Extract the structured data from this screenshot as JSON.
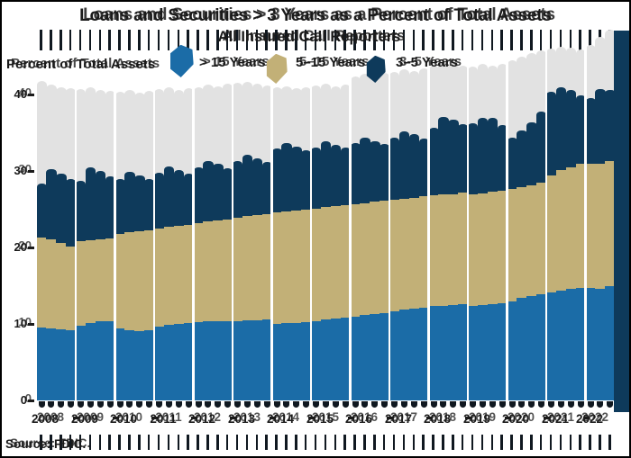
{
  "frame": {
    "background": "#ffffff",
    "border_color": "#000000"
  },
  "header": {
    "title": "Loans and Securities > 3 Years as a Percent of Total Assets",
    "subtitle": "All Insured Call Reporters"
  },
  "axes": {
    "y_title": "Percent of Total Assets",
    "y_ticks": [
      0,
      10,
      20,
      30,
      40
    ],
    "x_labels": [
      "2008",
      "2009",
      "2010",
      "2011",
      "2012",
      "2013",
      "2014",
      "2015",
      "2016",
      "2017",
      "2018",
      "2019",
      "2020",
      "2021",
      "2022"
    ]
  },
  "legend": {
    "items": [
      {
        "label": "> 15 Years",
        "color": "#1B6CA7",
        "swatch": "blob-swatch"
      },
      {
        "label": "5–15 Years",
        "color": "#C2B077",
        "swatch": "blob-swatch"
      },
      {
        "label": "3–5 Years",
        "color": "#0E3A5B",
        "swatch": "blob-swatch"
      }
    ]
  },
  "source_note": "Source: FDIC.",
  "colors": {
    "gt15_blue": "#1B6CA7",
    "mid_tan": "#C2B077",
    "short_navy": "#0E3A5B",
    "ghost_gray": "#E2E2E2",
    "text": "#1A1A1A",
    "artifact_dark": "#101820"
  },
  "chart_data": {
    "type": "bar",
    "stacked": true,
    "title": "Loans and Securities > 3 Years as a Percent of Total Assets",
    "subtitle": "All Insured Call Reporters",
    "ylabel": "Percent of Total Assets",
    "ylim": [
      0,
      45
    ],
    "grid": false,
    "legend_position": "top",
    "categories": [
      "2008Q1",
      "2008Q2",
      "2008Q3",
      "2008Q4",
      "2009Q1",
      "2009Q2",
      "2009Q3",
      "2009Q4",
      "2010Q1",
      "2010Q2",
      "2010Q3",
      "2010Q4",
      "2011Q1",
      "2011Q2",
      "2011Q3",
      "2011Q4",
      "2012Q1",
      "2012Q2",
      "2012Q3",
      "2012Q4",
      "2013Q1",
      "2013Q2",
      "2013Q3",
      "2013Q4",
      "2014Q1",
      "2014Q2",
      "2014Q3",
      "2014Q4",
      "2015Q1",
      "2015Q2",
      "2015Q3",
      "2015Q4",
      "2016Q1",
      "2016Q2",
      "2016Q3",
      "2016Q4",
      "2017Q1",
      "2017Q2",
      "2017Q3",
      "2017Q4",
      "2018Q1",
      "2018Q2",
      "2018Q3",
      "2018Q4",
      "2019Q1",
      "2019Q2",
      "2019Q3",
      "2019Q4",
      "2020Q1",
      "2020Q2",
      "2020Q3",
      "2020Q4",
      "2021Q1",
      "2021Q2",
      "2021Q3",
      "2021Q4",
      "2022Q1",
      "2022Q2",
      "2022Q3"
    ],
    "series": [
      {
        "name": "> 15 Years",
        "color": "#1B6CA7",
        "values": [
          9.5,
          9.4,
          9.3,
          9.2,
          9.8,
          10.1,
          10.3,
          10.4,
          9.4,
          9.2,
          9.1,
          9.2,
          9.7,
          9.9,
          10.0,
          10.1,
          10.2,
          10.3,
          10.3,
          10.4,
          10.4,
          10.5,
          10.5,
          10.6,
          10.0,
          10.1,
          10.1,
          10.2,
          10.4,
          10.6,
          10.7,
          10.8,
          11.0,
          11.2,
          11.3,
          11.4,
          11.7,
          11.9,
          12.0,
          12.1,
          12.3,
          12.4,
          12.5,
          12.6,
          12.4,
          12.5,
          12.6,
          12.7,
          12.9,
          13.4,
          13.6,
          13.9,
          14.1,
          14.4,
          14.6,
          14.7,
          14.7,
          14.6,
          15.0
        ]
      },
      {
        "name": "5–15 Years",
        "color": "#C2B077",
        "values": [
          11.8,
          11.7,
          11.3,
          10.9,
          11.0,
          10.9,
          10.8,
          10.8,
          12.4,
          12.8,
          13.0,
          13.1,
          12.8,
          12.8,
          12.8,
          12.9,
          13.0,
          13.1,
          13.2,
          13.3,
          13.5,
          13.6,
          13.7,
          13.8,
          14.6,
          14.6,
          14.7,
          14.8,
          14.7,
          14.7,
          14.7,
          14.7,
          14.7,
          14.6,
          14.7,
          14.7,
          14.5,
          14.5,
          14.5,
          14.6,
          14.5,
          14.5,
          14.5,
          14.6,
          14.6,
          14.6,
          14.7,
          14.7,
          14.8,
          14.5,
          14.5,
          14.6,
          15.3,
          15.7,
          15.9,
          16.2,
          16.3,
          16.4,
          16.3
        ]
      },
      {
        "name": "3–5 Years",
        "color": "#0E3A5B",
        "values": [
          7.1,
          9.1,
          9.1,
          8.9,
          7.9,
          9.5,
          8.9,
          8.1,
          7.1,
          7.9,
          7.3,
          6.6,
          7.3,
          7.9,
          7.3,
          6.6,
          7.3,
          7.9,
          7.4,
          6.7,
          7.4,
          8.0,
          7.5,
          6.8,
          8.3,
          8.9,
          8.4,
          7.7,
          8.0,
          8.6,
          8.0,
          7.5,
          7.9,
          8.5,
          7.9,
          7.4,
          8.2,
          8.8,
          8.3,
          7.6,
          8.8,
          10.2,
          9.7,
          8.9,
          9.2,
          9.8,
          9.7,
          8.6,
          6.7,
          7.4,
          8.3,
          9.3,
          10.9,
          10.8,
          10.1,
          9.0,
          8.5,
          9.7,
          9.3
        ]
      }
    ],
    "render_artifacts": {
      "note": "double-exposed ghost render: gray bar silhouette behind chart, dash rows at top and bottom, dark column at right edge",
      "ghost_bar_tops": [
        41.8,
        41.3,
        41.0,
        40.8,
        40.7,
        40.9,
        40.6,
        40.5,
        40.4,
        40.6,
        40.3,
        40.5,
        40.7,
        40.9,
        40.6,
        40.8,
        41.0,
        41.3,
        41.1,
        41.4,
        41.5,
        41.7,
        41.4,
        41.2,
        40.9,
        41.1,
        40.8,
        41.0,
        41.2,
        41.4,
        41.1,
        41.3,
        42.4,
        42.7,
        42.5,
        42.8,
        43.0,
        43.3,
        43.1,
        43.4,
        43.8,
        44.2,
        44.0,
        43.8,
        43.6,
        44.0,
        43.8,
        44.0,
        44.5,
        45.0,
        45.4,
        45.8,
        46.0,
        46.3,
        46.1,
        45.9,
        46.5,
        47.5,
        48.5
      ]
    }
  }
}
